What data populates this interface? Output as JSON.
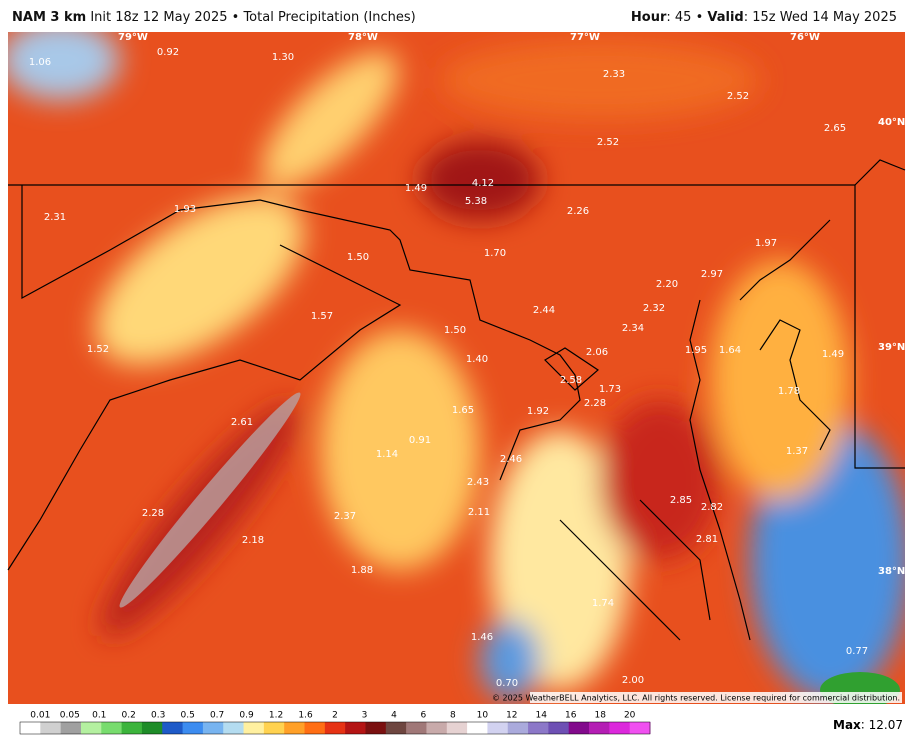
{
  "header": {
    "model": "NAM 3 km",
    "init": "Init 18z 12 May 2025",
    "separator": "•",
    "product": "Total Precipitation (Inches)",
    "hour_label": "Hour",
    "hour": "45",
    "valid_label": "Valid",
    "valid": "15z Wed 14 May 2025"
  },
  "map": {
    "lon_labels": [
      "79°W",
      "78°W",
      "77°W",
      "76°W"
    ],
    "lat_labels": [
      "40°N",
      "39°N",
      "38°N"
    ],
    "labels": [
      "1.06",
      "0.92",
      "1.30",
      "2.33",
      "2.52",
      "2.65",
      "2.52",
      "1.49",
      "4.12",
      "5.38",
      "2.31",
      "1.93",
      "2.26",
      "1.97",
      "1.50",
      "1.70",
      "2.97",
      "2.20",
      "2.32",
      "1.57",
      "2.44",
      "2.34",
      "1.50",
      "1.52",
      "2.06",
      "1.95",
      "1.64",
      "1.49",
      "1.40",
      "2.58",
      "1.73",
      "1.78",
      "2.28",
      "1.92",
      "1.65",
      "2.61",
      "0.91",
      "1.14",
      "1.37",
      "2.46",
      "2.43",
      "2.85",
      "2.82",
      "2.11",
      "2.37",
      "2.28",
      "2.18",
      "2.81",
      "1.88",
      "1.74",
      "1.46",
      "0.77",
      "2.00",
      "0.70"
    ],
    "copyright": "© 2025 WeatherBELL Analytics, LLC. All rights reserved. License required for commercial distribution."
  },
  "legend": {
    "ticks": [
      "0.01",
      "0.05",
      "0.1",
      "0.2",
      "0.3",
      "0.5",
      "0.7",
      "0.9",
      "1.2",
      "1.6",
      "2",
      "3",
      "4",
      "6",
      "8",
      "10",
      "12",
      "14",
      "16",
      "18",
      "20"
    ],
    "colors": [
      "#ffffff",
      "#d0d0d0",
      "#a0a0a0",
      "#b4f0a0",
      "#78dc6e",
      "#3cb43c",
      "#1e8c28",
      "#1e5ac8",
      "#3c8cf0",
      "#78b4f0",
      "#b4dcf0",
      "#fff0a0",
      "#ffd250",
      "#ffa028",
      "#ff6e14",
      "#e63214",
      "#b41414",
      "#7a1010",
      "#6e4640",
      "#a07878",
      "#c8aaaa",
      "#e6d2d2",
      "#ffffff",
      "#d2d2f0",
      "#aaaadc",
      "#8c78c8",
      "#6e50b4",
      "#820a8c",
      "#b41eb4",
      "#dc28dc",
      "#f050f0"
    ],
    "max_label": "Max",
    "max": "12.07"
  }
}
